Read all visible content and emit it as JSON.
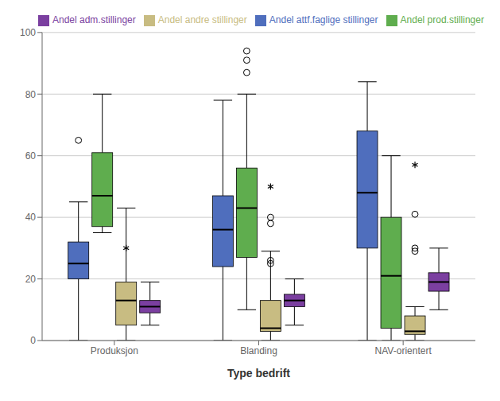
{
  "chart_data": {
    "type": "box",
    "title": "",
    "xlabel": "Type bedrift",
    "categories": [
      "Produksjon",
      "Blanding",
      "NAV-orientert"
    ],
    "series": [
      {
        "name": "Andel attf.faglige stillinger",
        "color": "#4F6EBD",
        "values": [
          {
            "whislo": 0,
            "q1": 20,
            "med": 25,
            "q3": 32,
            "whishi": 45,
            "fliers_circle": [
              65
            ]
          },
          {
            "whislo": 0,
            "q1": 24,
            "med": 36,
            "q3": 47,
            "whishi": 78
          },
          {
            "whislo": 0,
            "q1": 30,
            "med": 48,
            "q3": 68,
            "whishi": 84
          }
        ]
      },
      {
        "name": "Andel prod.stillinger",
        "color": "#5FAD4E",
        "values": [
          {
            "whislo": 35,
            "q1": 37,
            "med": 47,
            "q3": 61,
            "whishi": 80
          },
          {
            "whislo": 10,
            "q1": 27,
            "med": 43,
            "q3": 56,
            "whishi": 80,
            "fliers_circle": [
              87,
              91,
              94
            ]
          },
          {
            "whislo": 0,
            "q1": 4,
            "med": 21,
            "q3": 40,
            "whishi": 60
          }
        ]
      },
      {
        "name": "Andel andre stillinger",
        "color": "#C8BC82",
        "values": [
          {
            "whislo": 0,
            "q1": 5,
            "med": 13,
            "q3": 19,
            "whishi": 43,
            "fliers_star": [
              30
            ]
          },
          {
            "whislo": 0,
            "q1": 3,
            "med": 4,
            "q3": 13,
            "whishi": 29,
            "fliers_circle": [
              25,
              26,
              38,
              40
            ],
            "fliers_star": [
              50
            ]
          },
          {
            "whislo": 0,
            "q1": 2,
            "med": 3,
            "q3": 8,
            "whishi": 11,
            "fliers_circle": [
              29,
              30,
              41
            ],
            "fliers_star": [
              57
            ]
          }
        ]
      },
      {
        "name": "Andel adm.stillinger",
        "color": "#7B3FA0",
        "values": [
          {
            "whislo": 5,
            "q1": 9,
            "med": 11,
            "q3": 13,
            "whishi": 19
          },
          {
            "whislo": 5,
            "q1": 11,
            "med": 13,
            "q3": 15,
            "whishi": 20
          },
          {
            "whislo": 10,
            "q1": 16,
            "med": 19,
            "q3": 22,
            "whishi": 30
          }
        ]
      }
    ],
    "ylim": [
      0,
      100
    ],
    "yticks": [
      0,
      20,
      40,
      60,
      80,
      100
    ],
    "grid": true,
    "legend": "upper left"
  }
}
